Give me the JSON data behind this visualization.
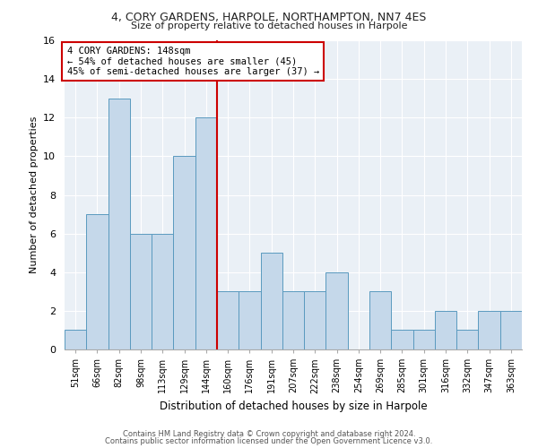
{
  "title": "4, CORY GARDENS, HARPOLE, NORTHAMPTON, NN7 4ES",
  "subtitle": "Size of property relative to detached houses in Harpole",
  "xlabel": "Distribution of detached houses by size in Harpole",
  "ylabel": "Number of detached properties",
  "categories": [
    "51sqm",
    "66sqm",
    "82sqm",
    "98sqm",
    "113sqm",
    "129sqm",
    "144sqm",
    "160sqm",
    "176sqm",
    "191sqm",
    "207sqm",
    "222sqm",
    "238sqm",
    "254sqm",
    "269sqm",
    "285sqm",
    "301sqm",
    "316sqm",
    "332sqm",
    "347sqm",
    "363sqm"
  ],
  "values": [
    1,
    7,
    13,
    6,
    6,
    10,
    12,
    3,
    3,
    5,
    3,
    3,
    4,
    0,
    3,
    1,
    1,
    2,
    1,
    2,
    2
  ],
  "bar_color": "#c5d8ea",
  "bar_edge_color": "#5a9abf",
  "vline_x": 6.5,
  "vline_color": "#cc0000",
  "annotation_text": "4 CORY GARDENS: 148sqm\n← 54% of detached houses are smaller (45)\n45% of semi-detached houses are larger (37) →",
  "annotation_box_color": "#ffffff",
  "annotation_box_edge": "#cc0000",
  "ylim": [
    0,
    16
  ],
  "yticks": [
    0,
    2,
    4,
    6,
    8,
    10,
    12,
    14,
    16
  ],
  "footer1": "Contains HM Land Registry data © Crown copyright and database right 2024.",
  "footer2": "Contains public sector information licensed under the Open Government Licence v3.0.",
  "bg_color": "#eaf0f6",
  "fig_bg_color": "#ffffff"
}
